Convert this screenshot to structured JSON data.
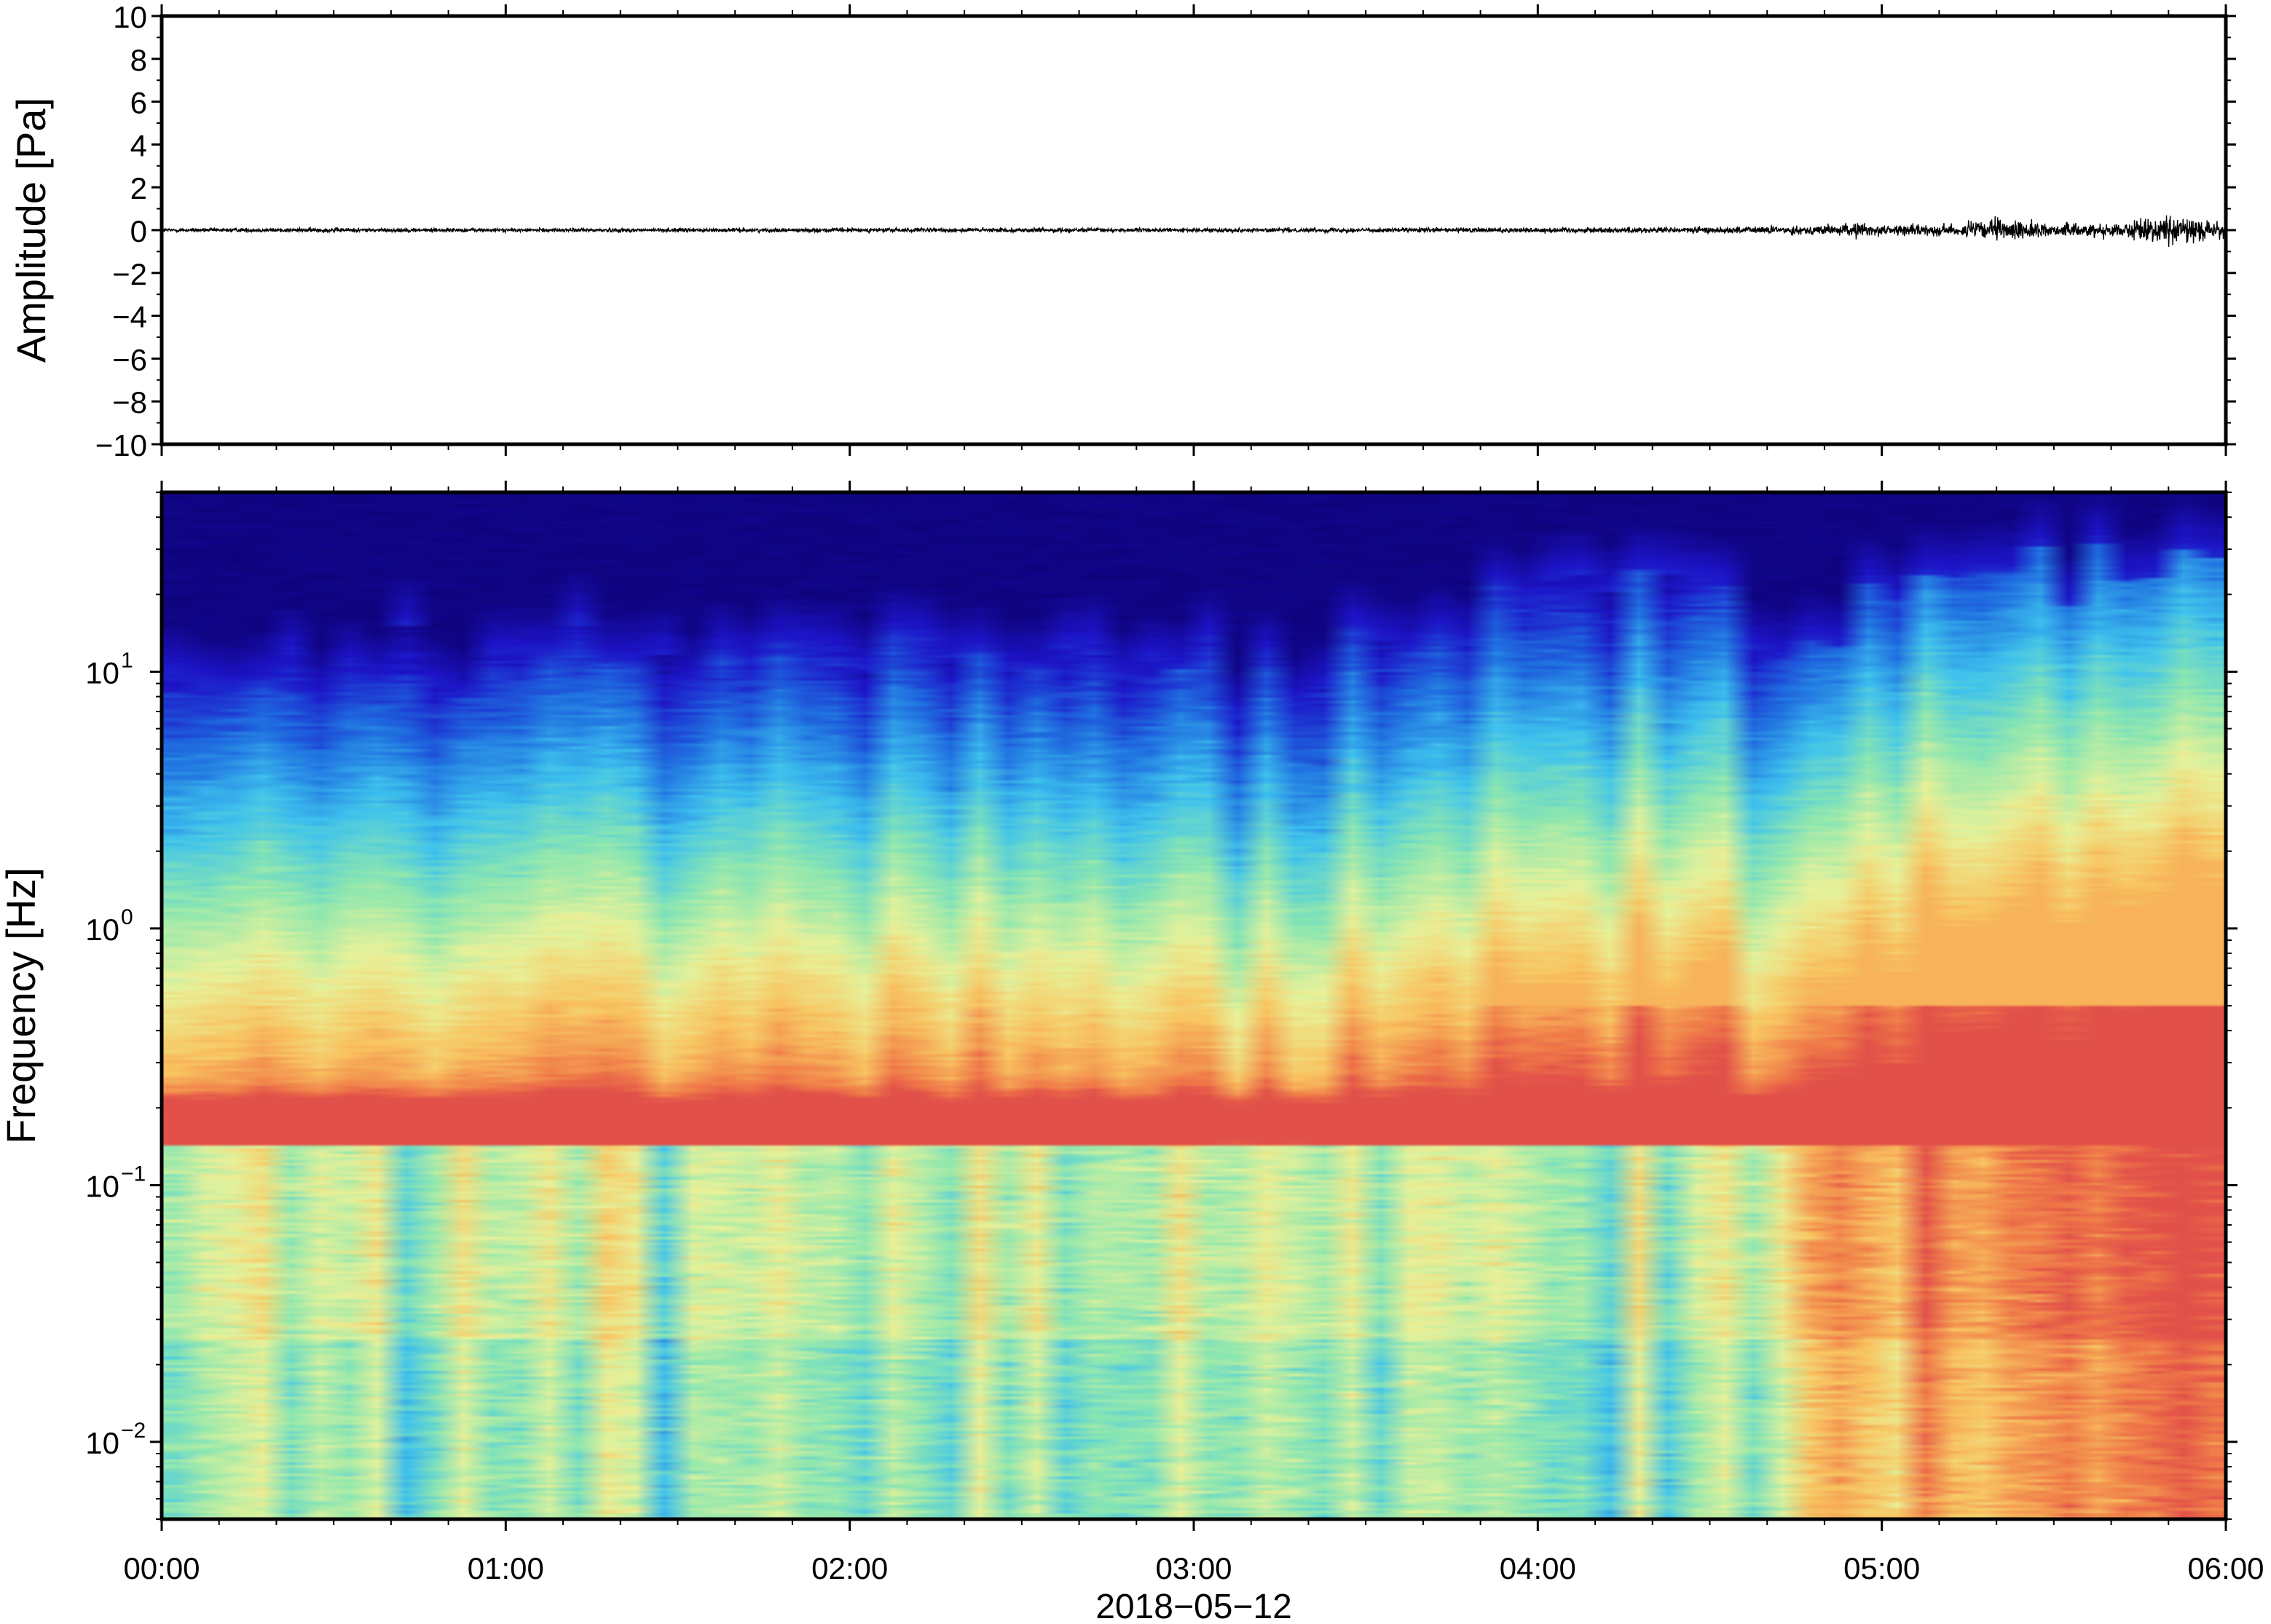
{
  "chart_data": [
    {
      "type": "line",
      "ylabel": "Amplitude [Pa]",
      "ylim": [
        -10,
        10
      ],
      "yticks": [
        10,
        8,
        6,
        4,
        2,
        0,
        -2,
        -4,
        -6,
        -8,
        -10
      ],
      "ytick_labels": [
        "10",
        "8",
        "6",
        "4",
        "2",
        "0",
        "−2",
        "−4",
        "−6",
        "−8",
        "−10"
      ],
      "x_range_hours": [
        0,
        6
      ],
      "series": [
        {
          "envelope_hours": [
            0,
            0.5,
            1,
            1.5,
            2,
            2.5,
            3,
            3.5,
            4,
            4.5,
            4.8,
            4.95,
            5.0,
            5.2,
            5.32,
            5.5,
            5.7,
            5.85,
            5.95,
            6
          ],
          "envelope_pa": [
            0.15,
            0.18,
            0.15,
            0.16,
            0.16,
            0.18,
            0.15,
            0.18,
            0.22,
            0.25,
            0.35,
            0.6,
            0.4,
            0.45,
            0.9,
            0.5,
            0.6,
            1.2,
            0.7,
            0.6
          ]
        }
      ]
    },
    {
      "type": "heatmap",
      "ylabel": "Frequency [Hz]",
      "xlabel": "2018−05−12",
      "yscale": "log",
      "ylim": [
        0.005,
        50
      ],
      "ytick_labels": [
        {
          "base": "10",
          "exp": "−2",
          "value": 0.01
        },
        {
          "base": "10",
          "exp": "−1",
          "value": 0.1
        },
        {
          "base": "10",
          "exp": "0",
          "value": 1
        },
        {
          "base": "10",
          "exp": "1",
          "value": 10
        }
      ],
      "xticks": [
        "00:00",
        "01:00",
        "02:00",
        "03:00",
        "04:00",
        "05:00",
        "06:00"
      ],
      "x_range_hours": [
        0,
        6
      ],
      "colormap": [
        "#0c006e",
        "#1d14c8",
        "#1f6fe0",
        "#3ec3ee",
        "#8ce7b0",
        "#e8f29a",
        "#f9c460",
        "#f07a48",
        "#d8364a"
      ],
      "upper_cutoff_hz": [
        [
          0,
          8
        ],
        [
          0.3,
          9
        ],
        [
          0.6,
          10
        ],
        [
          1.0,
          10
        ],
        [
          1.25,
          12
        ],
        [
          1.5,
          10
        ],
        [
          1.75,
          16
        ],
        [
          2.0,
          12
        ],
        [
          2.25,
          12
        ],
        [
          2.5,
          11
        ],
        [
          2.75,
          14
        ],
        [
          3.0,
          9
        ],
        [
          3.25,
          8
        ],
        [
          3.5,
          14
        ],
        [
          3.75,
          13
        ],
        [
          4.0,
          25
        ],
        [
          4.25,
          20
        ],
        [
          4.5,
          22
        ],
        [
          4.75,
          12
        ],
        [
          5.0,
          24
        ],
        [
          5.25,
          20
        ],
        [
          5.5,
          26
        ],
        [
          5.75,
          26
        ],
        [
          6.0,
          28
        ]
      ]
    }
  ]
}
